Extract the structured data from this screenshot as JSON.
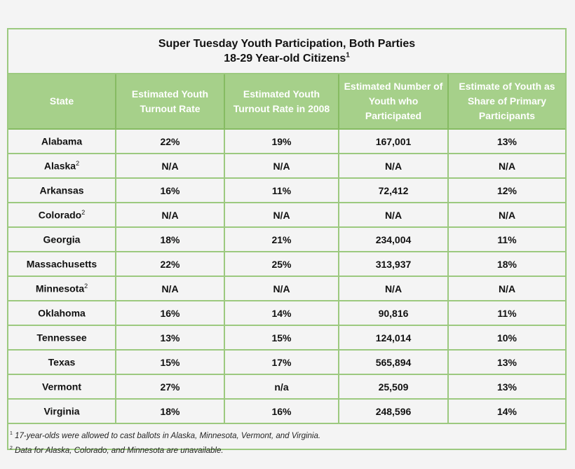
{
  "title": {
    "line1": "Super Tuesday Youth Participation, Both Parties",
    "line2": "18-29 Year-old Citizens",
    "line2_sup": "1"
  },
  "colors": {
    "header_bg": "#a6d08a",
    "border": "#9cc97f",
    "header_text": "#ffffff",
    "background": "#f4f4f4"
  },
  "columns": [
    "State",
    "Estimated Youth Turnout Rate",
    "Estimated Youth Turnout Rate in 2008",
    "Estimated Number of Youth who Participated",
    "Estimate of Youth as Share of Primary Participants"
  ],
  "rows": [
    {
      "state": "Alabama",
      "sup": "",
      "turnout": "22%",
      "turnout_2008": "19%",
      "number": "167,001",
      "share": "13%"
    },
    {
      "state": "Alaska",
      "sup": "2",
      "turnout": "N/A",
      "turnout_2008": "N/A",
      "number": "N/A",
      "share": "N/A"
    },
    {
      "state": "Arkansas",
      "sup": "",
      "turnout": "16%",
      "turnout_2008": "11%",
      "number": "72,412",
      "share": "12%"
    },
    {
      "state": "Colorado",
      "sup": "2",
      "turnout": "N/A",
      "turnout_2008": "N/A",
      "number": "N/A",
      "share": "N/A"
    },
    {
      "state": "Georgia",
      "sup": "",
      "turnout": "18%",
      "turnout_2008": "21%",
      "number": "234,004",
      "share": "11%"
    },
    {
      "state": "Massachusetts",
      "sup": "",
      "turnout": "22%",
      "turnout_2008": "25%",
      "number": "313,937",
      "share": "18%"
    },
    {
      "state": "Minnesota",
      "sup": "2",
      "turnout": "N/A",
      "turnout_2008": "N/A",
      "number": "N/A",
      "share": "N/A"
    },
    {
      "state": "Oklahoma",
      "sup": "",
      "turnout": "16%",
      "turnout_2008": "14%",
      "number": "90,816",
      "share": "11%"
    },
    {
      "state": "Tennessee",
      "sup": "",
      "turnout": "13%",
      "turnout_2008": "15%",
      "number": "124,014",
      "share": "10%"
    },
    {
      "state": "Texas",
      "sup": "",
      "turnout": "15%",
      "turnout_2008": "17%",
      "number": "565,894",
      "share": "13%"
    },
    {
      "state": "Vermont",
      "sup": "",
      "turnout": "27%",
      "turnout_2008": "n/a",
      "number": "25,509",
      "share": "13%"
    },
    {
      "state": "Virginia",
      "sup": "",
      "turnout": "18%",
      "turnout_2008": "16%",
      "number": "248,596",
      "share": "14%"
    }
  ],
  "footnotes": [
    {
      "mark": "1",
      "text": "17-year-olds were allowed to cast ballots in Alaska, Minnesota, Vermont, and Virginia."
    },
    {
      "mark": "2",
      "text": "Data for Alaska, Colorado, and Minnesota are unavailable."
    }
  ]
}
